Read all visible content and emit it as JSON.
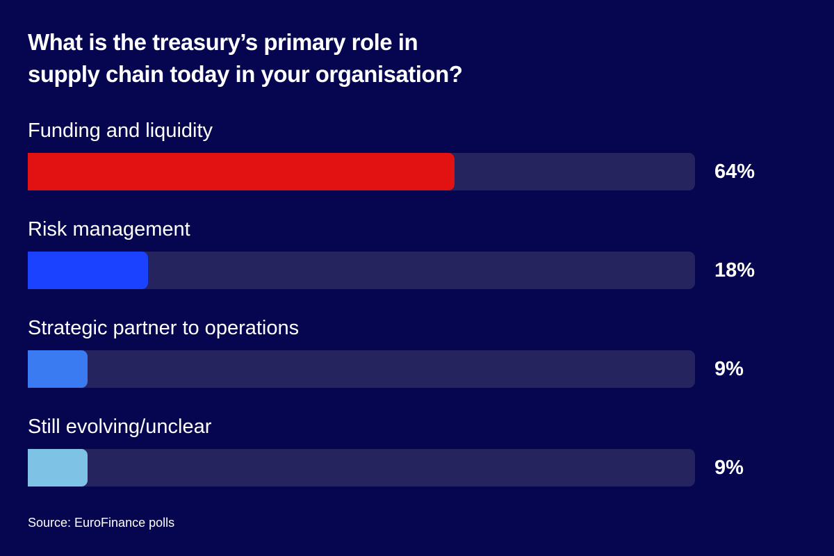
{
  "chart_data": {
    "type": "bar",
    "orientation": "horizontal",
    "title_lines": [
      "What is the treasury’s primary role in",
      "supply chain today in your organisation?"
    ],
    "categories": [
      "Funding and liquidity",
      "Risk management",
      "Strategic partner to operations",
      "Still evolving/unclear"
    ],
    "values": [
      64,
      18,
      9,
      9
    ],
    "value_labels": [
      "64%",
      "18%",
      "9%",
      "9%"
    ],
    "bar_colors": [
      "#e31212",
      "#1a42ff",
      "#3b7bf2",
      "#7ec3e6"
    ],
    "track_color": "#26245e",
    "background_color": "#060650",
    "xlim": [
      0,
      100
    ],
    "grid": false,
    "legend": "none",
    "source": "Source: EuroFinance polls"
  }
}
